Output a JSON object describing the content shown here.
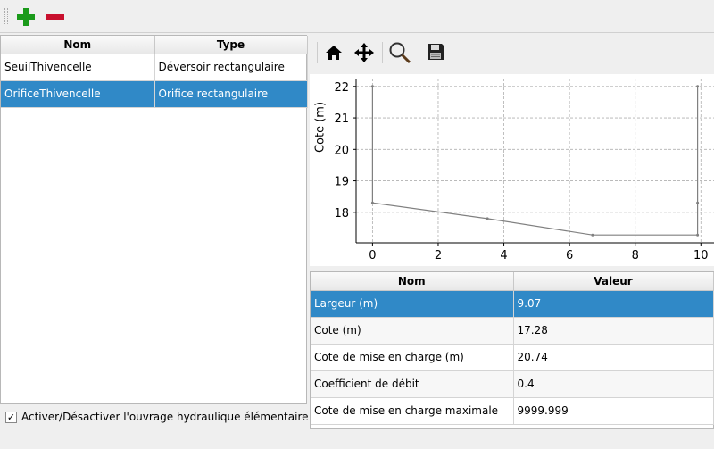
{
  "toolbar": {
    "add_icon": "plus-icon",
    "remove_icon": "minus-icon"
  },
  "structures_table": {
    "headers": [
      "Nom",
      "Type"
    ],
    "rows": [
      {
        "nom": "SeuilThivencelle",
        "type": "Déversoir rectangulaire"
      },
      {
        "nom": "OrificeThivencelle",
        "type": "Orifice rectangulaire",
        "selected": true
      }
    ]
  },
  "activate_checkbox": {
    "label": "Activer/Désactiver l'ouvrage hydraulique élémentaire",
    "checked": true
  },
  "plot_toolbar": {
    "icons": [
      "home-icon",
      "pan-icon",
      "zoom-icon",
      "save-icon"
    ]
  },
  "chart_data": {
    "type": "line",
    "ylabel": "Cote (m)",
    "xlabel": "",
    "xlim": [
      -0.5,
      10.4
    ],
    "ylim": [
      17.03,
      22.25
    ],
    "xticks": [
      "0",
      "2",
      "4",
      "6",
      "8",
      "10"
    ],
    "yticks": [
      "18",
      "19",
      "20",
      "21",
      "22"
    ],
    "grid": true,
    "line_color": "#808080",
    "x": [
      0,
      0,
      3.5,
      6.7,
      9.9,
      9.9,
      9.9
    ],
    "y": [
      22,
      18.3,
      17.8,
      17.28,
      17.28,
      18.3,
      22
    ]
  },
  "params_table": {
    "headers": [
      "Nom",
      "Valeur"
    ],
    "rows": [
      {
        "nom": "Largeur (m)",
        "valeur": "9.07",
        "selected": true
      },
      {
        "nom": "Cote (m)",
        "valeur": "17.28"
      },
      {
        "nom": "Cote de mise en charge (m)",
        "valeur": "20.74"
      },
      {
        "nom": "Coefficient de débit",
        "valeur": "0.4"
      },
      {
        "nom": "Cote de mise en charge maximale",
        "valeur": "9999.999"
      }
    ]
  },
  "colors": {
    "selection": "#3089c7",
    "add": "#1a9a1a",
    "remove": "#c8102e"
  }
}
